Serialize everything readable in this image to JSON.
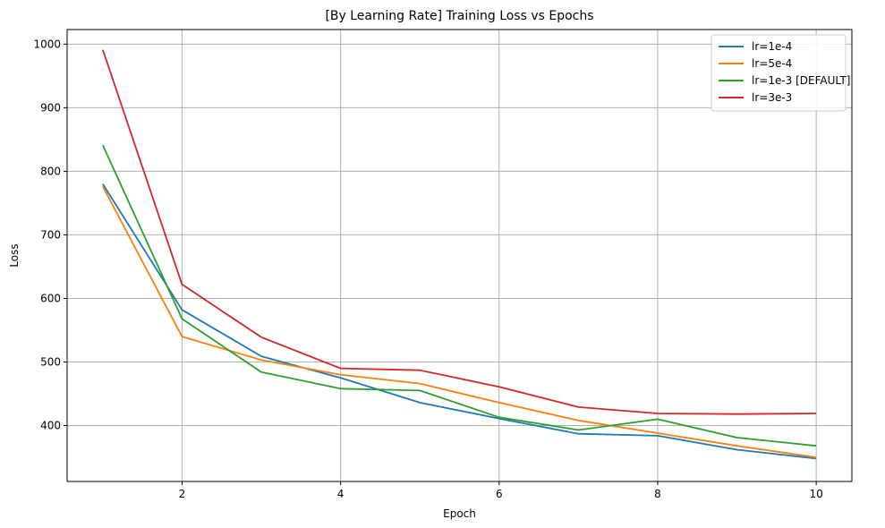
{
  "chart_data": {
    "type": "line",
    "title": "[By Learning Rate] Training Loss vs Epochs",
    "xlabel": "Epoch",
    "ylabel": "Loss",
    "xlim": [
      0.55,
      10.45
    ],
    "ylim": [
      312,
      1023
    ],
    "xticks": [
      2,
      4,
      6,
      8,
      10
    ],
    "yticks": [
      400,
      500,
      600,
      700,
      800,
      900,
      1000
    ],
    "grid": true,
    "legend_position": "top-right",
    "x": [
      1,
      2,
      3,
      4,
      5,
      6,
      7,
      8,
      9,
      10
    ],
    "series": [
      {
        "name": "lr=1e-4",
        "color": "#1f77b4",
        "values": [
          780,
          582,
          509,
          475,
          436,
          411,
          387,
          384,
          362,
          348
        ]
      },
      {
        "name": "lr=5e-4",
        "color": "#ff7f0e",
        "values": [
          776,
          540,
          503,
          480,
          466,
          436,
          408,
          388,
          368,
          350
        ]
      },
      {
        "name": "lr=1e-3 [DEFAULT]",
        "color": "#2ca02c",
        "values": [
          841,
          568,
          484,
          458,
          455,
          413,
          393,
          410,
          381,
          368
        ]
      },
      {
        "name": "lr=3e-3",
        "color": "#d62728",
        "values": [
          991,
          622,
          539,
          490,
          487,
          461,
          429,
          419,
          418,
          419
        ]
      }
    ]
  }
}
